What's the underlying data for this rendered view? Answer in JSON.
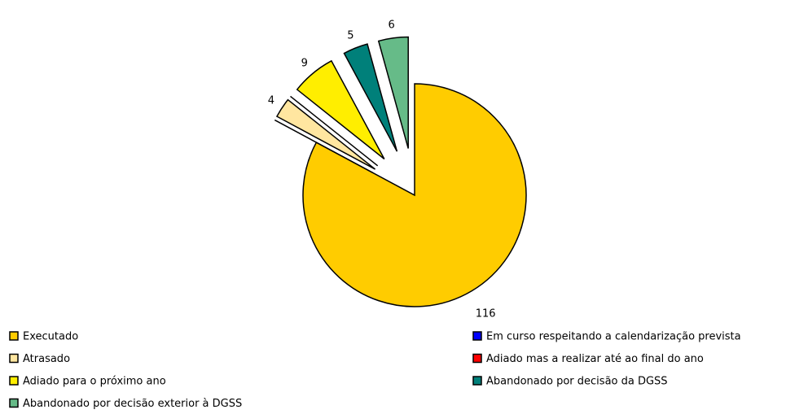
{
  "chart_data": {
    "type": "pie",
    "categories": [
      "Executado",
      "Em curso respeitando a calendarização prevista",
      "Atrasado",
      "Adiado mas a realizar até ao final do ano",
      "Adiado para o próximo ano",
      "Abandonado por decisão da DGSS",
      "Abandonado por decisão exterior à DGSS"
    ],
    "values": [
      116,
      0,
      4,
      0,
      9,
      5,
      6
    ],
    "colors": [
      "#ffcc00",
      "#0000ff",
      "#ffe6a0",
      "#ff0000",
      "#ffee00",
      "#00807a",
      "#66bb88"
    ],
    "legend": "bottom"
  }
}
